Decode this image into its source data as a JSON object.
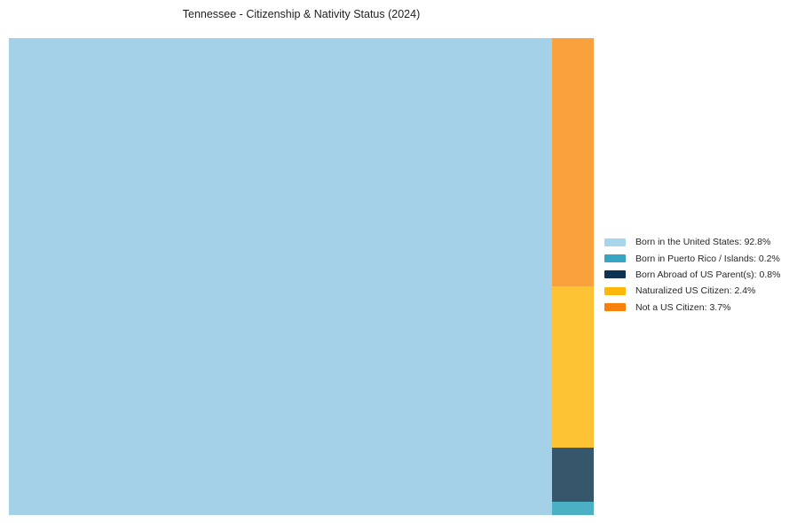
{
  "title": "Tennessee - Citizenship & Nativity Status (2024)",
  "chart_data": {
    "type": "treemap",
    "title": "Tennessee - Citizenship & Nativity Status (2024)",
    "unit": "%",
    "categories": [
      "Born in the United States",
      "Born in Puerto Rico / Islands",
      "Born Abroad of US Parent(s)",
      "Naturalized US Citizen",
      "Not a US Citizen"
    ],
    "values": [
      92.8,
      0.2,
      0.8,
      2.4,
      3.7
    ],
    "items": [
      {
        "label": "Born in the United States",
        "value": 92.8,
        "tile_color": "#A4D1E8",
        "legend_color": "#A9D5EC"
      },
      {
        "label": "Born in Puerto Rico / Islands",
        "value": 0.2,
        "tile_color": "#4BB0C3",
        "legend_color": "#36A5C3"
      },
      {
        "label": "Born Abroad of US Parent(s)",
        "value": 0.8,
        "tile_color": "#35566B",
        "legend_color": "#0D3352"
      },
      {
        "label": "Naturalized US Citizen",
        "value": 2.4,
        "tile_color": "#FEC334",
        "legend_color": "#FEB70D"
      },
      {
        "label": "Not a US Citizen",
        "value": 3.7,
        "tile_color": "#F9A13C",
        "legend_color": "#F8810B"
      }
    ],
    "legend_labels": [
      "Born in the United States: 92.8%",
      "Born in Puerto Rico / Islands: 0.2%",
      "Born Abroad of US Parent(s): 0.8%",
      "Naturalized US Citizen: 2.4%",
      "Not a US Citizen: 3.7%"
    ],
    "layout": {
      "main_item": 0,
      "side_order_top_to_bottom": [
        4,
        3,
        2,
        1
      ],
      "legend_position": "right-center",
      "grid": false,
      "axes": false
    }
  }
}
